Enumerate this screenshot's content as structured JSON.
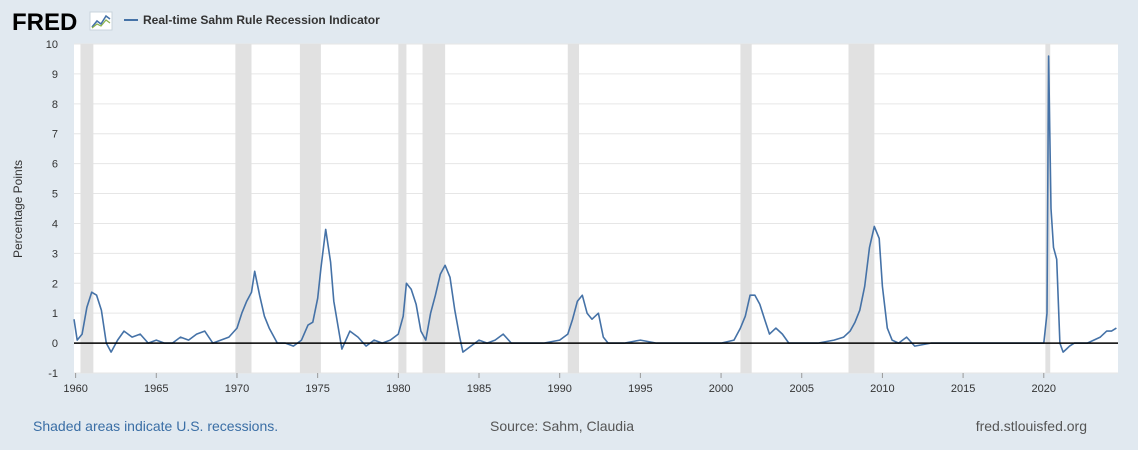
{
  "header": {
    "logo_text": "FRED",
    "logo_icon": "line-chart-icon",
    "legend_label": "Real-time Sahm Rule Recession Indicator"
  },
  "footer": {
    "left": "Shaded areas indicate U.S. recessions.",
    "center": "Source: Sahm, Claudia",
    "right": "fred.stlouisfed.org"
  },
  "colors": {
    "background": "#e1e9f0",
    "plot_background": "#ffffff",
    "series": "#4572a7",
    "recession": "#e1e1e1",
    "zero_line": "#000000",
    "gridline": "#e6e6e6",
    "link": "#3a6ea5",
    "source": "#555555"
  },
  "chart_data": {
    "type": "line",
    "title": "",
    "xlabel": "",
    "ylabel": "Percentage Points",
    "xlim": [
      1959.9,
      2024.6
    ],
    "ylim": [
      -1,
      10
    ],
    "x_ticks": [
      1960,
      1965,
      1970,
      1975,
      1980,
      1985,
      1990,
      1995,
      2000,
      2005,
      2010,
      2015,
      2020
    ],
    "y_ticks": [
      -1,
      0,
      1,
      2,
      3,
      4,
      5,
      6,
      7,
      8,
      9,
      10
    ],
    "grid": "horizontal",
    "legend": "top-left",
    "recessions": [
      [
        1960.3,
        1961.1
      ],
      [
        1969.9,
        1970.9
      ],
      [
        1973.9,
        1975.2
      ],
      [
        1980.0,
        1980.5
      ],
      [
        1981.5,
        1982.9
      ],
      [
        1990.5,
        1991.2
      ],
      [
        2001.2,
        2001.9
      ],
      [
        2007.9,
        2009.5
      ],
      [
        2020.1,
        2020.4
      ]
    ],
    "series": [
      {
        "x": [
          1959.9,
          1960.1,
          1960.4,
          1960.7,
          1961.0,
          1961.3,
          1961.6,
          1961.9,
          1962.2,
          1962.6,
          1963.0,
          1963.5,
          1964.0,
          1964.5,
          1965.0,
          1965.5,
          1966.0,
          1966.5,
          1967.0,
          1967.5,
          1968.0,
          1968.5,
          1969.0,
          1969.5,
          1970.0,
          1970.3,
          1970.6,
          1970.9,
          1971.1,
          1971.4,
          1971.7,
          1972.0,
          1972.5,
          1973.0,
          1973.5,
          1974.0,
          1974.4,
          1974.7,
          1975.0,
          1975.2,
          1975.5,
          1975.8,
          1976.0,
          1976.5,
          1977.0,
          1977.5,
          1978.0,
          1978.5,
          1979.0,
          1979.5,
          1980.0,
          1980.3,
          1980.5,
          1980.8,
          1981.1,
          1981.4,
          1981.7,
          1982.0,
          1982.3,
          1982.6,
          1982.9,
          1983.2,
          1983.5,
          1983.8,
          1984.0,
          1984.5,
          1985.0,
          1985.5,
          1986.0,
          1986.5,
          1987.0,
          1988.0,
          1989.0,
          1990.0,
          1990.5,
          1990.8,
          1991.1,
          1991.4,
          1991.7,
          1992.0,
          1992.4,
          1992.7,
          1993.0,
          1994.0,
          1995.0,
          1996.0,
          1997.0,
          1998.0,
          1999.0,
          2000.0,
          2000.8,
          2001.2,
          2001.5,
          2001.8,
          2002.1,
          2002.4,
          2002.7,
          2003.0,
          2003.4,
          2003.8,
          2004.2,
          2005.0,
          2006.0,
          2007.0,
          2007.6,
          2008.0,
          2008.3,
          2008.6,
          2008.9,
          2009.2,
          2009.5,
          2009.8,
          2010.0,
          2010.3,
          2010.6,
          2011.0,
          2011.5,
          2012.0,
          2013.0,
          2014.0,
          2015.0,
          2016.0,
          2017.0,
          2018.0,
          2019.0,
          2020.0,
          2020.2,
          2020.3,
          2020.45,
          2020.6,
          2020.8,
          2021.0,
          2021.2,
          2021.4,
          2021.6,
          2021.9,
          2022.3,
          2022.7,
          2023.1,
          2023.5,
          2023.9,
          2024.2,
          2024.5
        ],
        "values": [
          0.8,
          0.1,
          0.3,
          1.2,
          1.7,
          1.6,
          1.1,
          0.0,
          -0.3,
          0.1,
          0.4,
          0.2,
          0.3,
          0.0,
          0.1,
          0.0,
          0.0,
          0.2,
          0.1,
          0.3,
          0.4,
          0.0,
          0.1,
          0.2,
          0.5,
          1.0,
          1.4,
          1.7,
          2.4,
          1.6,
          0.9,
          0.5,
          0.0,
          0.0,
          -0.1,
          0.1,
          0.6,
          0.7,
          1.5,
          2.5,
          3.8,
          2.7,
          1.4,
          -0.2,
          0.4,
          0.2,
          -0.1,
          0.1,
          0.0,
          0.1,
          0.3,
          0.9,
          2.0,
          1.8,
          1.3,
          0.4,
          0.1,
          1.0,
          1.6,
          2.3,
          2.6,
          2.2,
          1.1,
          0.2,
          -0.3,
          -0.1,
          0.1,
          0.0,
          0.1,
          0.3,
          0.0,
          0.0,
          0.0,
          0.1,
          0.3,
          0.8,
          1.4,
          1.6,
          1.0,
          0.8,
          1.0,
          0.2,
          0.0,
          0.0,
          0.1,
          0.0,
          0.0,
          0.0,
          0.0,
          0.0,
          0.1,
          0.5,
          0.9,
          1.6,
          1.6,
          1.3,
          0.8,
          0.3,
          0.5,
          0.3,
          0.0,
          0.0,
          0.0,
          0.1,
          0.2,
          0.4,
          0.7,
          1.1,
          1.9,
          3.2,
          3.9,
          3.5,
          1.9,
          0.5,
          0.1,
          0.0,
          0.2,
          -0.1,
          0.0,
          0.0,
          0.0,
          0.0,
          0.0,
          0.0,
          0.0,
          0.0,
          1.0,
          9.6,
          4.5,
          3.2,
          2.8,
          0.0,
          -0.3,
          -0.2,
          -0.1,
          0.0,
          0.0,
          0.0,
          0.1,
          0.2,
          0.4,
          0.4,
          0.5
        ]
      }
    ]
  }
}
